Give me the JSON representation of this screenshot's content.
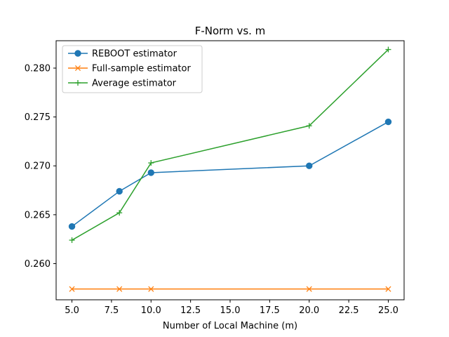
{
  "chart_data": {
    "type": "line",
    "title": "F-Norm vs. m",
    "xlabel": "Number of Local Machine (m)",
    "ylabel": "",
    "xlim": [
      4.0,
      26.0
    ],
    "ylim": [
      0.2563,
      0.2828
    ],
    "xticks": [
      5.0,
      7.5,
      10.0,
      12.5,
      15.0,
      17.5,
      20.0,
      22.5,
      25.0
    ],
    "xtick_labels": [
      "5.0",
      "7.5",
      "10.0",
      "12.5",
      "15.0",
      "17.5",
      "20.0",
      "22.5",
      "25.0"
    ],
    "yticks": [
      0.26,
      0.265,
      0.27,
      0.275,
      0.28
    ],
    "ytick_labels": [
      "0.260",
      "0.265",
      "0.270",
      "0.275",
      "0.280"
    ],
    "grid": false,
    "legend_position": "top-left",
    "x": [
      5,
      8,
      10,
      20,
      25
    ],
    "series": [
      {
        "name": "REBOOT estimator",
        "color": "#1f77b4",
        "marker": "circle",
        "values": [
          0.2638,
          0.2674,
          0.2693,
          0.27,
          0.2745
        ]
      },
      {
        "name": "Full-sample estimator",
        "color": "#ff7f0e",
        "marker": "x",
        "values": [
          0.2574,
          0.2574,
          0.2574,
          0.2574,
          0.2574
        ]
      },
      {
        "name": "Average estimator",
        "color": "#2ca02c",
        "marker": "plus",
        "values": [
          0.2624,
          0.2652,
          0.2703,
          0.2741,
          0.2819
        ]
      }
    ]
  }
}
